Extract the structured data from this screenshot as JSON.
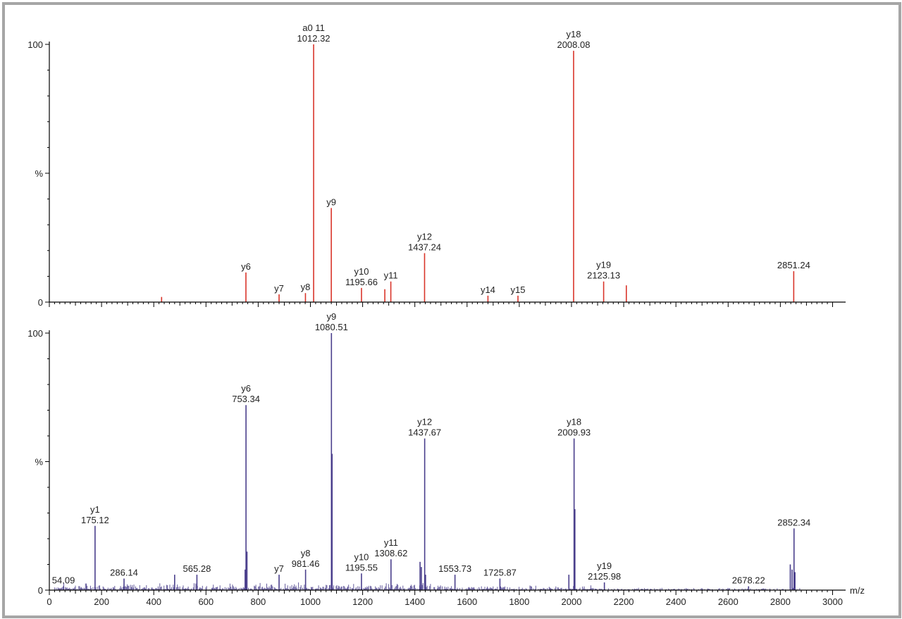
{
  "chart_data": [
    {
      "type": "bar",
      "subtype": "mass-spectrum",
      "color": "#d9352b",
      "xlim": [
        0,
        3050
      ],
      "ylim": [
        0,
        100
      ],
      "y_ticks": [
        "0",
        "%",
        "100"
      ],
      "peaks": [
        {
          "x": 430,
          "y": 2
        },
        {
          "x": 753,
          "y": 11.5
        },
        {
          "x": 880,
          "y": 3
        },
        {
          "x": 981,
          "y": 3.5
        },
        {
          "x": 1012.32,
          "y": 100
        },
        {
          "x": 1080,
          "y": 36.5
        },
        {
          "x": 1195.66,
          "y": 5.5
        },
        {
          "x": 1285,
          "y": 5
        },
        {
          "x": 1308,
          "y": 8
        },
        {
          "x": 1437.24,
          "y": 19
        },
        {
          "x": 1680,
          "y": 2.5
        },
        {
          "x": 1795,
          "y": 2.5
        },
        {
          "x": 2008.08,
          "y": 97.5
        },
        {
          "x": 2123.13,
          "y": 8
        },
        {
          "x": 2210,
          "y": 6.5
        },
        {
          "x": 2851.24,
          "y": 12
        }
      ],
      "annotations": [
        {
          "x": 1012.32,
          "y": 100,
          "lines": [
            "a0 11",
            "1012.32"
          ]
        },
        {
          "x": 2008.08,
          "y": 97.5,
          "lines": [
            "y18",
            "2008.08"
          ]
        },
        {
          "x": 1080,
          "y": 36.5,
          "lines": [
            "y9"
          ]
        },
        {
          "x": 1437.24,
          "y": 19,
          "lines": [
            "y12",
            "1437.24"
          ]
        },
        {
          "x": 753,
          "y": 11.5,
          "lines": [
            "y6"
          ]
        },
        {
          "x": 2123.13,
          "y": 8,
          "lines": [
            "y19",
            "2123.13"
          ]
        },
        {
          "x": 2851.24,
          "y": 12,
          "lines": [
            "2851.24"
          ]
        },
        {
          "x": 1195.66,
          "y": 5.5,
          "lines": [
            "y10",
            "1195.66"
          ]
        },
        {
          "x": 1308,
          "y": 8,
          "lines": [
            "y11"
          ]
        },
        {
          "x": 880,
          "y": 3,
          "lines": [
            "y7"
          ]
        },
        {
          "x": 981,
          "y": 3.5,
          "lines": [
            "y8"
          ]
        },
        {
          "x": 1680,
          "y": 2.5,
          "lines": [
            "y14"
          ]
        },
        {
          "x": 1795,
          "y": 2.5,
          "lines": [
            "y15"
          ]
        }
      ]
    },
    {
      "type": "bar",
      "subtype": "mass-spectrum",
      "color": "#4a3f8c",
      "xlim": [
        0,
        3050
      ],
      "ylim": [
        0,
        100
      ],
      "y_ticks": [
        "0",
        "%",
        "100"
      ],
      "x_ticks": [
        0,
        200,
        400,
        600,
        800,
        1000,
        1200,
        1400,
        1600,
        1800,
        2000,
        2200,
        2400,
        2600,
        2800,
        3000
      ],
      "xlabel": "m/z",
      "peaks": [
        {
          "x": 54.09,
          "y": 1.5
        },
        {
          "x": 175.12,
          "y": 25
        },
        {
          "x": 286.14,
          "y": 4.5
        },
        {
          "x": 480,
          "y": 6
        },
        {
          "x": 565.28,
          "y": 6
        },
        {
          "x": 750,
          "y": 8
        },
        {
          "x": 753.34,
          "y": 72
        },
        {
          "x": 757,
          "y": 15
        },
        {
          "x": 880,
          "y": 6
        },
        {
          "x": 981.46,
          "y": 8
        },
        {
          "x": 1080.51,
          "y": 100
        },
        {
          "x": 1083,
          "y": 53
        },
        {
          "x": 1195.55,
          "y": 6.5
        },
        {
          "x": 1308.62,
          "y": 12
        },
        {
          "x": 1420,
          "y": 11
        },
        {
          "x": 1425,
          "y": 9
        },
        {
          "x": 1437.67,
          "y": 59
        },
        {
          "x": 1441,
          "y": 6
        },
        {
          "x": 1553.73,
          "y": 6
        },
        {
          "x": 1725.87,
          "y": 4.5
        },
        {
          "x": 1990,
          "y": 6
        },
        {
          "x": 2009.93,
          "y": 59
        },
        {
          "x": 2013,
          "y": 31.5
        },
        {
          "x": 2125.98,
          "y": 3
        },
        {
          "x": 2678.22,
          "y": 1.5
        },
        {
          "x": 2838,
          "y": 10
        },
        {
          "x": 2845,
          "y": 8
        },
        {
          "x": 2852.34,
          "y": 24
        },
        {
          "x": 2856,
          "y": 7
        }
      ],
      "annotations": [
        {
          "x": 1080.51,
          "y": 100,
          "lines": [
            "y9",
            "1080.51"
          ]
        },
        {
          "x": 753.34,
          "y": 72,
          "lines": [
            "y6",
            "753.34"
          ]
        },
        {
          "x": 2009.93,
          "y": 59,
          "lines": [
            "y18",
            "2009.93"
          ]
        },
        {
          "x": 1437.67,
          "y": 59,
          "lines": [
            "y12",
            "1437.67"
          ]
        },
        {
          "x": 175.12,
          "y": 25,
          "lines": [
            "y1",
            "175.12"
          ]
        },
        {
          "x": 2852.34,
          "y": 24,
          "lines": [
            "2852.34"
          ]
        },
        {
          "x": 1308.62,
          "y": 12,
          "lines": [
            "y11",
            "1308.62"
          ]
        },
        {
          "x": 981.46,
          "y": 8,
          "lines": [
            "y8",
            "981.46"
          ]
        },
        {
          "x": 1195.55,
          "y": 6.5,
          "lines": [
            "y10",
            "1195.55"
          ]
        },
        {
          "x": 880,
          "y": 6,
          "lines": [
            "y7"
          ]
        },
        {
          "x": 1553.73,
          "y": 6,
          "lines": [
            "1553.73"
          ]
        },
        {
          "x": 1725.87,
          "y": 4.5,
          "lines": [
            "1725.87"
          ]
        },
        {
          "x": 2125.98,
          "y": 3,
          "lines": [
            "y19",
            "2125.98"
          ]
        },
        {
          "x": 565.28,
          "y": 6,
          "lines": [
            "565.28"
          ]
        },
        {
          "x": 286.14,
          "y": 4.5,
          "lines": [
            "286.14"
          ]
        },
        {
          "x": 2678.22,
          "y": 1.5,
          "lines": [
            "2678.22"
          ]
        },
        {
          "x": 54.09,
          "y": 1.5,
          "lines": [
            "54.09"
          ]
        }
      ]
    }
  ]
}
